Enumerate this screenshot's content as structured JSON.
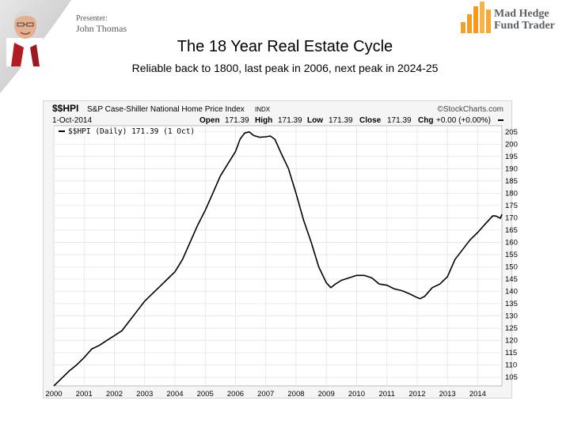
{
  "presenter": {
    "label": "Presenter:",
    "name": "John Thomas"
  },
  "brand": {
    "line1": "Mad Hedge",
    "line2": "Fund Trader"
  },
  "slide": {
    "title": "The 18 Year Real Estate Cycle",
    "subtitle": "Reliable back to 1800, last peak in 2006, next peak in 2024-25"
  },
  "chart_data": {
    "type": "line",
    "symbol": "$$HPI",
    "description": "S&P Case-Shiller National Home Price Index",
    "exchange": "INDX",
    "watermark": "©StockCharts.com",
    "date": "1-Oct-2014",
    "quote": {
      "open_label": "Open",
      "open": "171.39",
      "high_label": "High",
      "high": "171.39",
      "low_label": "Low",
      "low": "171.39",
      "close_label": "Close",
      "close": "171.39",
      "chg_label": "Chg",
      "chg": "+0.00 (+0.00%)"
    },
    "legend": "$$HPI (Daily) 171.39 (1 Oct)",
    "x_ticks": [
      "2000",
      "2001",
      "2002",
      "2003",
      "2004",
      "2005",
      "2006",
      "2007",
      "2008",
      "2009",
      "2010",
      "2011",
      "2012",
      "2013",
      "2014"
    ],
    "y_ticks": [
      105,
      110,
      115,
      120,
      125,
      130,
      135,
      140,
      145,
      150,
      155,
      160,
      165,
      170,
      175,
      180,
      185,
      190,
      195,
      200,
      205
    ],
    "xlim": [
      2000.0,
      2014.8
    ],
    "ylim": [
      101.5,
      207.5
    ],
    "axis_side": "right",
    "grid": true,
    "line_color": "#000000",
    "series": [
      {
        "values": [
          [
            2000.0,
            101.5
          ],
          [
            2000.25,
            104.5
          ],
          [
            2000.5,
            107.5
          ],
          [
            2000.75,
            110
          ],
          [
            2001.0,
            113
          ],
          [
            2001.25,
            116.5
          ],
          [
            2001.5,
            118
          ],
          [
            2001.75,
            120
          ],
          [
            2002.0,
            122
          ],
          [
            2002.25,
            124
          ],
          [
            2002.5,
            128
          ],
          [
            2002.75,
            132
          ],
          [
            2003.0,
            136
          ],
          [
            2003.25,
            139
          ],
          [
            2003.5,
            142
          ],
          [
            2003.75,
            145
          ],
          [
            2004.0,
            148
          ],
          [
            2004.25,
            153
          ],
          [
            2004.5,
            160
          ],
          [
            2004.75,
            167
          ],
          [
            2005.0,
            173
          ],
          [
            2005.25,
            180
          ],
          [
            2005.5,
            187
          ],
          [
            2005.75,
            192
          ],
          [
            2006.0,
            197
          ],
          [
            2006.15,
            202
          ],
          [
            2006.3,
            204.5
          ],
          [
            2006.45,
            205
          ],
          [
            2006.6,
            203.5
          ],
          [
            2006.8,
            202.8
          ],
          [
            2007.0,
            203
          ],
          [
            2007.15,
            203.3
          ],
          [
            2007.3,
            202
          ],
          [
            2007.5,
            196.5
          ],
          [
            2007.75,
            190
          ],
          [
            2008.0,
            180
          ],
          [
            2008.25,
            169
          ],
          [
            2008.5,
            160
          ],
          [
            2008.75,
            150
          ],
          [
            2009.0,
            143.5
          ],
          [
            2009.15,
            141.5
          ],
          [
            2009.3,
            143
          ],
          [
            2009.5,
            144.5
          ],
          [
            2009.75,
            145.5
          ],
          [
            2010.0,
            146.5
          ],
          [
            2010.25,
            146.5
          ],
          [
            2010.5,
            145.5
          ],
          [
            2010.75,
            143
          ],
          [
            2011.0,
            142.5
          ],
          [
            2011.25,
            141
          ],
          [
            2011.5,
            140.3
          ],
          [
            2011.75,
            139
          ],
          [
            2012.0,
            137.5
          ],
          [
            2012.1,
            137
          ],
          [
            2012.25,
            138
          ],
          [
            2012.5,
            141.5
          ],
          [
            2012.75,
            143
          ],
          [
            2013.0,
            146
          ],
          [
            2013.25,
            153
          ],
          [
            2013.5,
            157
          ],
          [
            2013.75,
            161
          ],
          [
            2014.0,
            164
          ],
          [
            2014.25,
            167.5
          ],
          [
            2014.5,
            170.8
          ],
          [
            2014.6,
            170.7
          ],
          [
            2014.75,
            169.8
          ],
          [
            2014.8,
            171.39
          ]
        ]
      }
    ]
  }
}
